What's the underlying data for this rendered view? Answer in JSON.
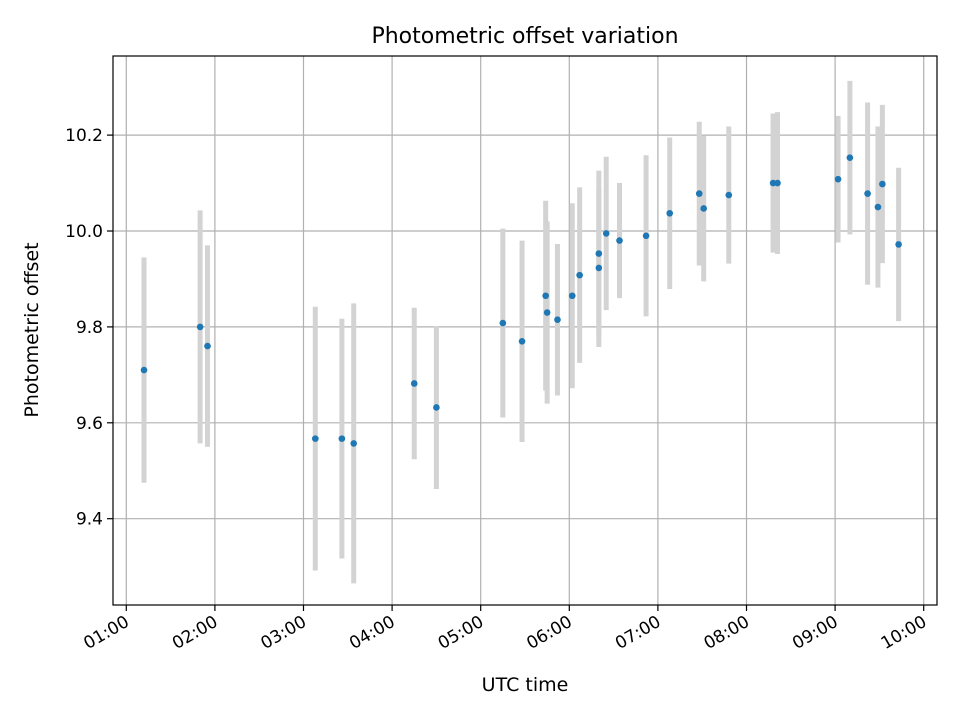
{
  "chart_data": {
    "type": "scatter",
    "title": "Photometric offset variation",
    "xlabel": "UTC time",
    "ylabel": "Photometric offset",
    "x_unit": "hours UTC",
    "xlim": [
      "00:51",
      "10:09"
    ],
    "ylim": [
      9.22,
      10.365
    ],
    "xticks": [
      "01:00",
      "02:00",
      "03:00",
      "04:00",
      "05:00",
      "06:00",
      "07:00",
      "08:00",
      "09:00",
      "10:00"
    ],
    "yticks": [
      "9.4",
      "9.6",
      "9.8",
      "10.0",
      "10.2"
    ],
    "grid": true,
    "colors": {
      "marker": "#1f77b4",
      "errorbar": "#d3d3d3",
      "grid": "#b0b0b0"
    },
    "series": [
      {
        "points": [
          {
            "x": "01:12",
            "y": 9.71,
            "err": 0.235
          },
          {
            "x": "01:50",
            "y": 9.8,
            "err": 0.243
          },
          {
            "x": "01:55",
            "y": 9.76,
            "err": 0.21
          },
          {
            "x": "03:08",
            "y": 9.567,
            "err": 0.275
          },
          {
            "x": "03:26",
            "y": 9.567,
            "err": 0.25
          },
          {
            "x": "03:34",
            "y": 9.557,
            "err": 0.292
          },
          {
            "x": "04:15",
            "y": 9.682,
            "err": 0.158
          },
          {
            "x": "04:30",
            "y": 9.632,
            "err": 0.17
          },
          {
            "x": "05:15",
            "y": 9.808,
            "err": 0.197
          },
          {
            "x": "05:28",
            "y": 9.77,
            "err": 0.21
          },
          {
            "x": "05:44",
            "y": 9.865,
            "err": 0.198
          },
          {
            "x": "05:45",
            "y": 9.83,
            "err": 0.19
          },
          {
            "x": "05:52",
            "y": 9.815,
            "err": 0.158
          },
          {
            "x": "06:02",
            "y": 9.865,
            "err": 0.193
          },
          {
            "x": "06:07",
            "y": 9.908,
            "err": 0.183
          },
          {
            "x": "06:20",
            "y": 9.953,
            "err": 0.173
          },
          {
            "x": "06:20",
            "y": 9.923,
            "err": 0.165
          },
          {
            "x": "06:25",
            "y": 9.995,
            "err": 0.16
          },
          {
            "x": "06:34",
            "y": 9.98,
            "err": 0.12
          },
          {
            "x": "06:52",
            "y": 9.99,
            "err": 0.168
          },
          {
            "x": "07:08",
            "y": 10.037,
            "err": 0.158
          },
          {
            "x": "07:28",
            "y": 10.078,
            "err": 0.15
          },
          {
            "x": "07:31",
            "y": 10.047,
            "err": 0.152
          },
          {
            "x": "07:48",
            "y": 10.075,
            "err": 0.143
          },
          {
            "x": "08:18",
            "y": 10.1,
            "err": 0.145
          },
          {
            "x": "08:21",
            "y": 10.1,
            "err": 0.148
          },
          {
            "x": "09:02",
            "y": 10.108,
            "err": 0.132
          },
          {
            "x": "09:10",
            "y": 10.153,
            "err": 0.16
          },
          {
            "x": "09:22",
            "y": 10.078,
            "err": 0.19
          },
          {
            "x": "09:29",
            "y": 10.05,
            "err": 0.168
          },
          {
            "x": "09:32",
            "y": 10.098,
            "err": 0.165
          },
          {
            "x": "09:43",
            "y": 9.972,
            "err": 0.16
          }
        ]
      }
    ]
  }
}
